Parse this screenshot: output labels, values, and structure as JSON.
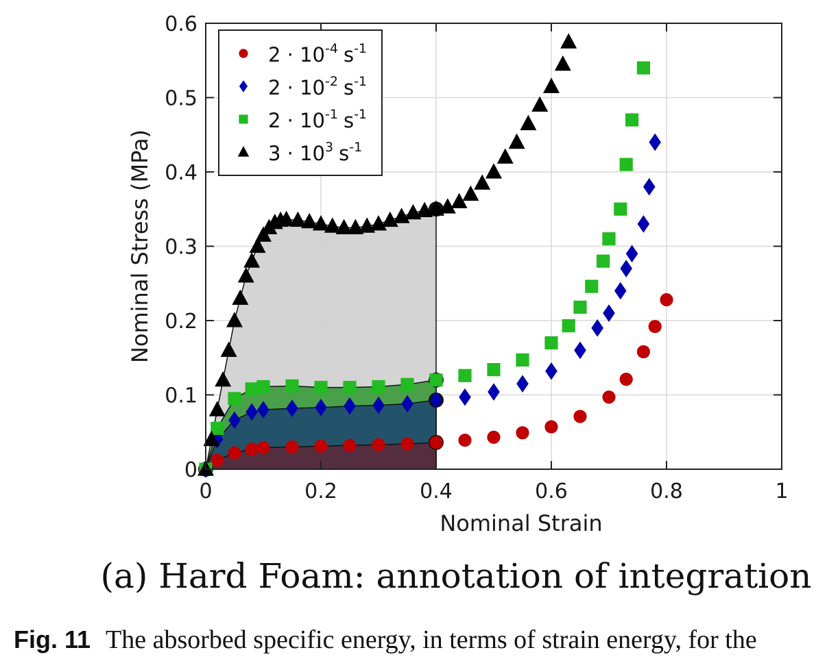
{
  "chart_data": {
    "type": "scatter",
    "xlabel": "Nominal Strain",
    "ylabel": "Nominal Stress (MPa)",
    "xlim": [
      0,
      1
    ],
    "ylim": [
      0,
      0.6
    ],
    "xticks": [
      "0",
      "0.2",
      "0.4",
      "0.6",
      "0.8",
      "1"
    ],
    "yticks": [
      "0",
      "0.1",
      "0.2",
      "0.3",
      "0.4",
      "0.5",
      "0.6"
    ],
    "grid": true,
    "legend_position": "top-left",
    "integration_limit_strain": 0.4,
    "series": [
      {
        "name_base": "2 · 10",
        "name_exp": "-4",
        "name_unit": "s",
        "name_unit_exp": "-1",
        "marker": "circle",
        "color": "#c00000",
        "fill": "#5a2a3a",
        "x": [
          0,
          0.02,
          0.05,
          0.08,
          0.1,
          0.15,
          0.2,
          0.25,
          0.3,
          0.35,
          0.4,
          0.45,
          0.5,
          0.55,
          0.6,
          0.65,
          0.7,
          0.73,
          0.76,
          0.78,
          0.8
        ],
        "y": [
          0,
          0.012,
          0.022,
          0.027,
          0.029,
          0.03,
          0.031,
          0.032,
          0.033,
          0.034,
          0.036,
          0.039,
          0.043,
          0.049,
          0.057,
          0.071,
          0.097,
          0.121,
          0.158,
          0.192,
          0.228
        ]
      },
      {
        "name_base": "2 · 10",
        "name_exp": "-2",
        "name_unit": "s",
        "name_unit_exp": "-1",
        "marker": "diamond",
        "color": "#0000b0",
        "fill": "#1f4a6e",
        "x": [
          0,
          0.02,
          0.05,
          0.08,
          0.1,
          0.15,
          0.2,
          0.25,
          0.3,
          0.35,
          0.4,
          0.45,
          0.5,
          0.55,
          0.6,
          0.65,
          0.68,
          0.7,
          0.72,
          0.73,
          0.74,
          0.76,
          0.77,
          0.78
        ],
        "y": [
          0,
          0.04,
          0.066,
          0.077,
          0.08,
          0.082,
          0.083,
          0.085,
          0.086,
          0.088,
          0.093,
          0.097,
          0.104,
          0.115,
          0.132,
          0.16,
          0.19,
          0.21,
          0.24,
          0.27,
          0.29,
          0.33,
          0.38,
          0.44
        ]
      },
      {
        "name_base": "2 · 10",
        "name_exp": "-1",
        "name_unit": "s",
        "name_unit_exp": "-1",
        "marker": "square",
        "color": "#22bb22",
        "fill": "#3a9a3a",
        "x": [
          0,
          0.02,
          0.05,
          0.08,
          0.1,
          0.15,
          0.2,
          0.25,
          0.3,
          0.35,
          0.4,
          0.45,
          0.5,
          0.55,
          0.6,
          0.63,
          0.65,
          0.67,
          0.69,
          0.7,
          0.72,
          0.73,
          0.74,
          0.76
        ],
        "y": [
          0,
          0.055,
          0.095,
          0.108,
          0.111,
          0.112,
          0.11,
          0.11,
          0.111,
          0.114,
          0.12,
          0.126,
          0.134,
          0.147,
          0.17,
          0.193,
          0.218,
          0.246,
          0.28,
          0.31,
          0.35,
          0.41,
          0.47,
          0.54
        ]
      },
      {
        "name_base": "3 · 10",
        "name_exp": "3",
        "name_unit": "s",
        "name_unit_exp": "-1",
        "marker": "triangle",
        "color": "#000000",
        "fill": "#cfcfcf",
        "x": [
          0,
          0.01,
          0.02,
          0.03,
          0.04,
          0.05,
          0.06,
          0.07,
          0.08,
          0.09,
          0.1,
          0.11,
          0.12,
          0.13,
          0.14,
          0.16,
          0.18,
          0.2,
          0.22,
          0.24,
          0.26,
          0.28,
          0.3,
          0.32,
          0.34,
          0.36,
          0.38,
          0.4,
          0.42,
          0.44,
          0.46,
          0.48,
          0.5,
          0.52,
          0.54,
          0.56,
          0.58,
          0.6,
          0.62,
          0.63
        ],
        "y": [
          0,
          0.04,
          0.08,
          0.12,
          0.16,
          0.2,
          0.23,
          0.26,
          0.28,
          0.3,
          0.315,
          0.325,
          0.332,
          0.335,
          0.336,
          0.335,
          0.333,
          0.33,
          0.327,
          0.325,
          0.325,
          0.327,
          0.33,
          0.335,
          0.34,
          0.345,
          0.348,
          0.35,
          0.353,
          0.36,
          0.37,
          0.385,
          0.4,
          0.42,
          0.44,
          0.465,
          0.49,
          0.515,
          0.545,
          0.575
        ]
      }
    ]
  },
  "subcaption": "(a) Hard Foam: annotation of integration",
  "caption_label": "Fig. 11",
  "caption_text": "The absorbed specific energy, in terms of strain energy, for the"
}
